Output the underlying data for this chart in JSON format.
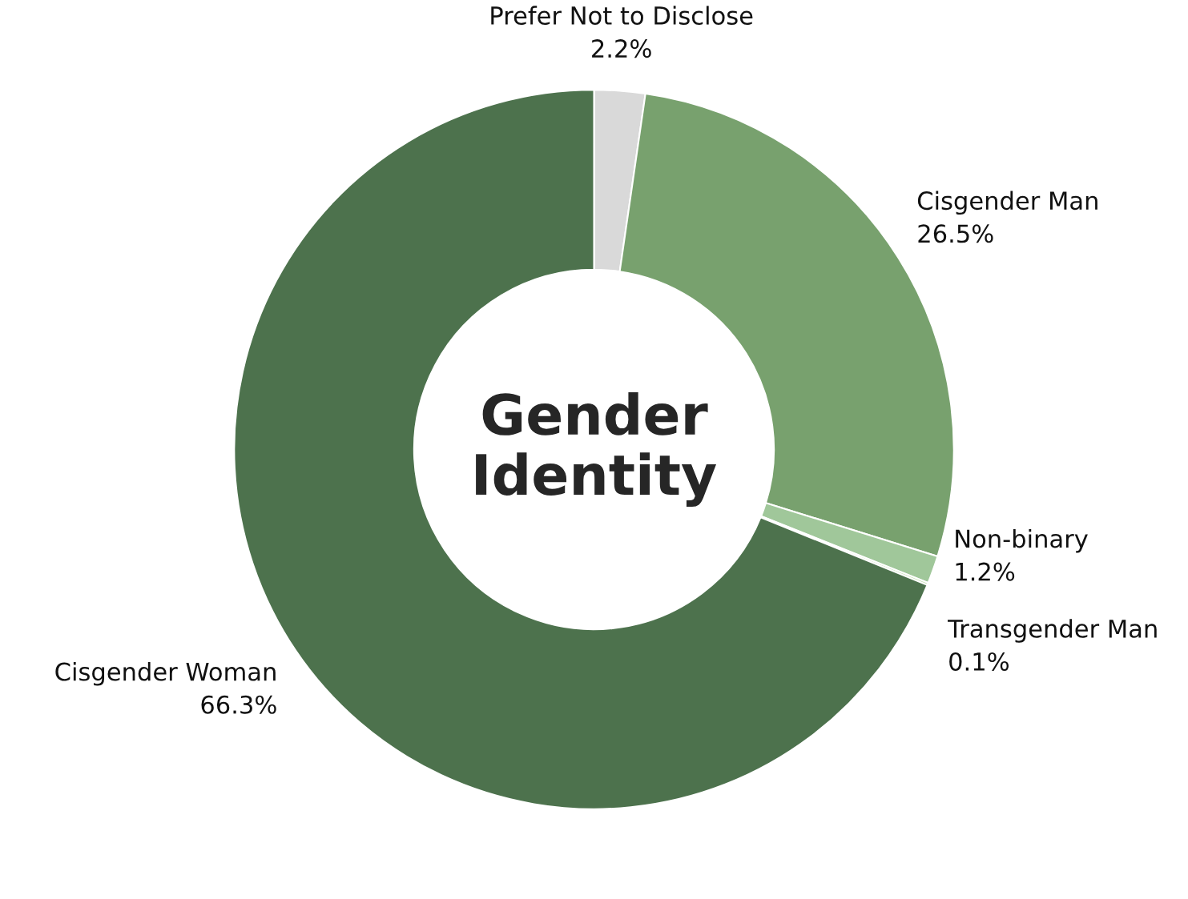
{
  "chart_data": {
    "type": "donut",
    "title": "Gender\nIdentity",
    "categories": [
      "Prefer Not to Disclose",
      "Cisgender Man",
      "Non-binary",
      "Transgender Man",
      "Cisgender Woman"
    ],
    "values": [
      2.2,
      26.5,
      1.2,
      0.1,
      66.3
    ],
    "value_labels": [
      "2.2%",
      "26.5%",
      "1.2%",
      "0.1%",
      "66.3%"
    ],
    "colors": [
      "#d9d9d9",
      "#78a16e",
      "#a0c79a",
      "#c5e0b4",
      "#4d724d"
    ]
  }
}
